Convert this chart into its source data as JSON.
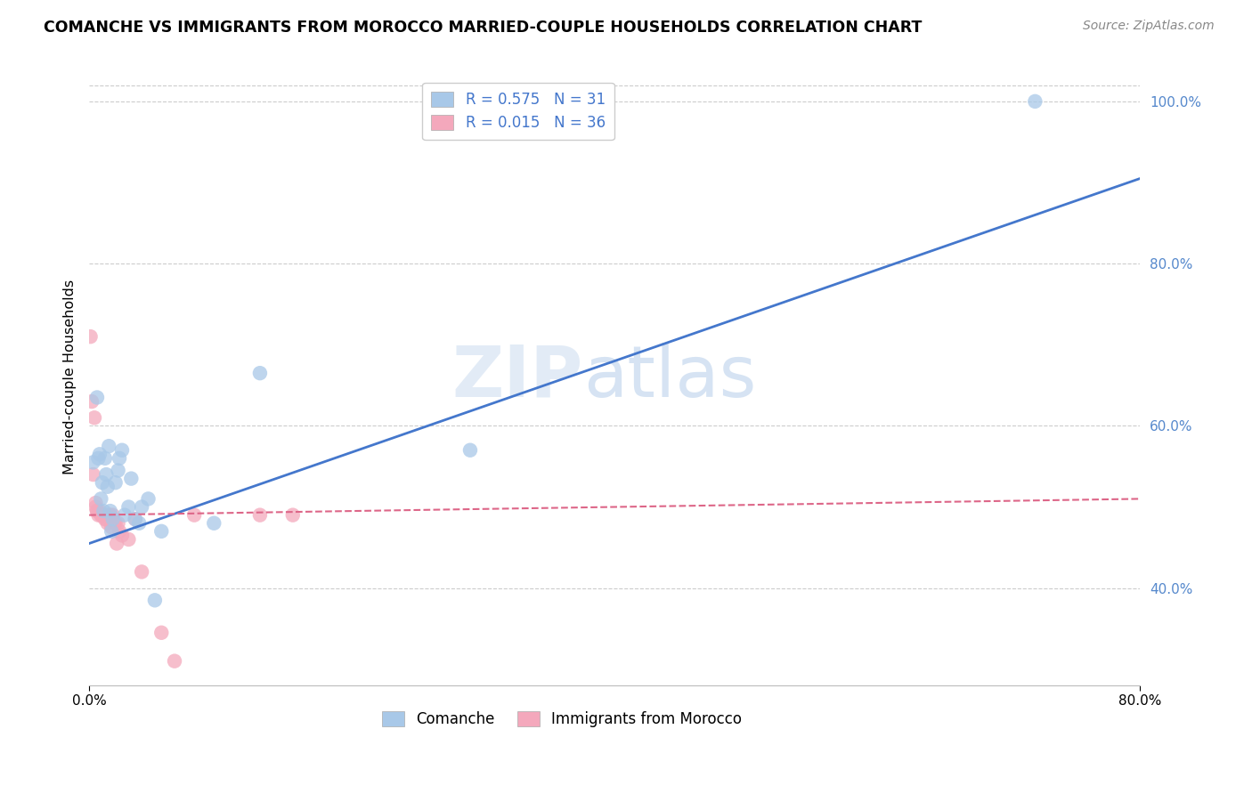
{
  "title": "COMANCHE VS IMMIGRANTS FROM MOROCCO MARRIED-COUPLE HOUSEHOLDS CORRELATION CHART",
  "source": "Source: ZipAtlas.com",
  "ylabel": "Married-couple Households",
  "xlim": [
    0.0,
    0.8
  ],
  "ylim": [
    0.28,
    1.04
  ],
  "yticks": [
    0.4,
    0.6,
    0.8,
    1.0
  ],
  "yticklabels": [
    "40.0%",
    "60.0%",
    "80.0%",
    "100.0%"
  ],
  "ytick_color": "#5588cc",
  "xtick_labels_left": "0.0%",
  "xtick_labels_right": "80.0%",
  "blue_R": 0.575,
  "blue_N": 31,
  "pink_R": 0.015,
  "pink_N": 36,
  "blue_color": "#a8c8e8",
  "pink_color": "#f4a8bc",
  "blue_line_color": "#4477cc",
  "pink_line_color": "#dd6688",
  "grid_color": "#cccccc",
  "background_color": "#ffffff",
  "watermark_zip": "ZIP",
  "watermark_atlas": "atlas",
  "legend_label_blue": "Comanche",
  "legend_label_pink": "Immigrants from Morocco",
  "blue_line_x0": 0.0,
  "blue_line_y0": 0.455,
  "blue_line_x1": 0.8,
  "blue_line_y1": 0.905,
  "pink_line_x0": 0.0,
  "pink_line_y0": 0.49,
  "pink_line_x1": 0.8,
  "pink_line_y1": 0.51,
  "blue_scatter_x": [
    0.003,
    0.006,
    0.007,
    0.008,
    0.009,
    0.01,
    0.011,
    0.012,
    0.013,
    0.014,
    0.015,
    0.016,
    0.017,
    0.018,
    0.02,
    0.022,
    0.023,
    0.025,
    0.027,
    0.03,
    0.032,
    0.035,
    0.038,
    0.04,
    0.045,
    0.05,
    0.055,
    0.095,
    0.13,
    0.29,
    0.72
  ],
  "blue_scatter_y": [
    0.555,
    0.635,
    0.56,
    0.565,
    0.51,
    0.53,
    0.495,
    0.56,
    0.54,
    0.525,
    0.575,
    0.495,
    0.47,
    0.485,
    0.53,
    0.545,
    0.56,
    0.57,
    0.49,
    0.5,
    0.535,
    0.485,
    0.48,
    0.5,
    0.51,
    0.385,
    0.47,
    0.48,
    0.665,
    0.57,
    1.0
  ],
  "pink_scatter_x": [
    0.001,
    0.002,
    0.003,
    0.004,
    0.005,
    0.005,
    0.006,
    0.006,
    0.007,
    0.008,
    0.009,
    0.01,
    0.01,
    0.011,
    0.012,
    0.012,
    0.013,
    0.014,
    0.015,
    0.016,
    0.017,
    0.018,
    0.019,
    0.02,
    0.021,
    0.022,
    0.023,
    0.025,
    0.03,
    0.035,
    0.04,
    0.055,
    0.065,
    0.08,
    0.13,
    0.155
  ],
  "pink_scatter_y": [
    0.71,
    0.63,
    0.54,
    0.61,
    0.5,
    0.505,
    0.495,
    0.495,
    0.49,
    0.495,
    0.49,
    0.49,
    0.49,
    0.49,
    0.485,
    0.49,
    0.485,
    0.48,
    0.49,
    0.49,
    0.475,
    0.49,
    0.48,
    0.48,
    0.455,
    0.48,
    0.47,
    0.465,
    0.46,
    0.485,
    0.42,
    0.345,
    0.31,
    0.49,
    0.49,
    0.49
  ]
}
